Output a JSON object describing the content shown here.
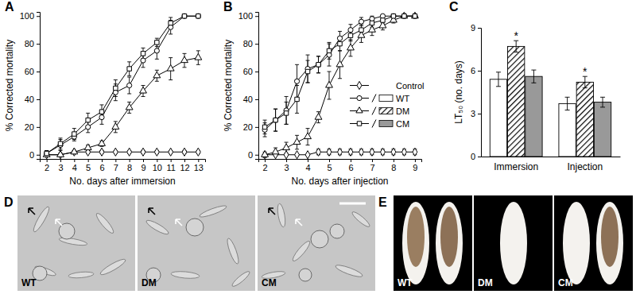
{
  "chart_data": [
    {
      "type": "line",
      "title": "A",
      "xlabel": "No. days after immersion",
      "ylabel": "% Corrected mortality",
      "x": [
        2,
        3,
        4,
        5,
        6,
        7,
        8,
        9,
        10,
        11,
        12,
        13
      ],
      "xlim": [
        1.5,
        13.5
      ],
      "xticks": [
        2,
        3,
        4,
        5,
        6,
        7,
        8,
        9,
        10,
        11,
        12,
        13
      ],
      "ylim": [
        -3,
        103
      ],
      "yticks": [
        0,
        20,
        40,
        60,
        80,
        100
      ],
      "series": [
        {
          "name": "Control",
          "color": "#000000",
          "marker": "diamond",
          "values": [
            0,
            0,
            2,
            2,
            2,
            2,
            2,
            2,
            2,
            2,
            2,
            2
          ],
          "errors": [
            0,
            0,
            1,
            1,
            1,
            1,
            1,
            1,
            1,
            1,
            1,
            1
          ]
        },
        {
          "name": "WT",
          "color": "#000000",
          "marker": "circle",
          "values": [
            1,
            7,
            13,
            20,
            27,
            45,
            50,
            68,
            75,
            92,
            100,
            100
          ],
          "errors": [
            2,
            4,
            3,
            4,
            5,
            6,
            6,
            5,
            6,
            5,
            0,
            0
          ]
        },
        {
          "name": "DM",
          "color": "#000000",
          "marker": "triangle",
          "values": [
            0,
            0,
            2,
            5,
            8,
            20,
            34,
            46,
            57,
            62,
            68,
            70
          ],
          "errors": [
            0,
            1,
            1,
            2,
            2,
            4,
            4,
            4,
            4,
            8,
            5,
            5
          ]
        },
        {
          "name": "CM",
          "color": "#000000",
          "marker": "square",
          "values": [
            1,
            8,
            15,
            25,
            31,
            48,
            62,
            73,
            81,
            95,
            100,
            100
          ],
          "errors": [
            2,
            4,
            4,
            5,
            5,
            6,
            5,
            4,
            3,
            4,
            0,
            0
          ]
        }
      ]
    },
    {
      "type": "line",
      "title": "B",
      "xlabel": "No. days after injection",
      "ylabel": "% Corrected mortality",
      "x": [
        2,
        2.5,
        3,
        3.5,
        4,
        4.5,
        5,
        5.5,
        6,
        6.5,
        7,
        7.5,
        8,
        8.5,
        9
      ],
      "xlim": [
        1.7,
        9.3
      ],
      "xticks": [
        2,
        3,
        4,
        5,
        6,
        7,
        8,
        9
      ],
      "ylim": [
        -3,
        103
      ],
      "yticks": [
        0,
        20,
        40,
        60,
        80,
        100
      ],
      "legend": "right",
      "series": [
        {
          "name": "Control",
          "color": "#000000",
          "marker": "diamond",
          "values": [
            0,
            0,
            0,
            0,
            0,
            2,
            2,
            2,
            2,
            2,
            2,
            2,
            2,
            2,
            2
          ],
          "errors": [
            0,
            0,
            0,
            0,
            0,
            2,
            2,
            2,
            2,
            2,
            2,
            2,
            2,
            2,
            2
          ]
        },
        {
          "name": "WT",
          "color": "#000000",
          "marker": "circle",
          "values": [
            18,
            25,
            32,
            53,
            62,
            65,
            72,
            84,
            90,
            96,
            98,
            100,
            100,
            100,
            100
          ],
          "errors": [
            5,
            8,
            10,
            12,
            10,
            6,
            8,
            5,
            4,
            3,
            2,
            0,
            0,
            0,
            0
          ]
        },
        {
          "name": "DM",
          "color": "#000000",
          "marker": "triangle",
          "values": [
            0,
            2,
            5,
            9,
            13,
            27,
            50,
            65,
            77,
            86,
            90,
            93,
            97,
            100,
            100
          ],
          "errors": [
            2,
            3,
            4,
            5,
            6,
            4,
            10,
            10,
            6,
            5,
            4,
            3,
            2,
            0,
            0
          ]
        },
        {
          "name": "CM",
          "color": "#000000",
          "marker": "square",
          "values": [
            20,
            25,
            30,
            40,
            60,
            65,
            75,
            80,
            86,
            90,
            95,
            97,
            100,
            100,
            100
          ],
          "errors": [
            5,
            8,
            8,
            10,
            8,
            6,
            6,
            5,
            4,
            4,
            3,
            2,
            0,
            0,
            0
          ]
        }
      ]
    },
    {
      "type": "bar",
      "title": "C",
      "ylabel": "LT₅₀ (no. days)",
      "categories": [
        "Immersion",
        "Injection"
      ],
      "ylim": [
        0,
        9
      ],
      "yticks": [
        0,
        3,
        6,
        9
      ],
      "series": [
        {
          "name": "WT",
          "color": "#ffffff",
          "values": [
            5.4,
            3.7
          ],
          "errors": [
            0.5,
            0.45
          ]
        },
        {
          "name": "DM",
          "color": "#ffffff",
          "marker": "hatched",
          "values": [
            7.7,
            5.2
          ],
          "errors": [
            0.4,
            0.4
          ]
        },
        {
          "name": "CM",
          "color": "#999999",
          "values": [
            5.6,
            3.8
          ],
          "errors": [
            0.45,
            0.35
          ]
        }
      ],
      "annotations": [
        {
          "text": "*",
          "category": 0,
          "series": 1
        },
        {
          "text": "*",
          "category": 1,
          "series": 1
        }
      ]
    }
  ],
  "images": [
    {
      "panel": "D",
      "labels": [
        "WT",
        "DM",
        "CM"
      ]
    },
    {
      "panel": "E",
      "labels": [
        "WT",
        "DM",
        "CM"
      ]
    }
  ]
}
